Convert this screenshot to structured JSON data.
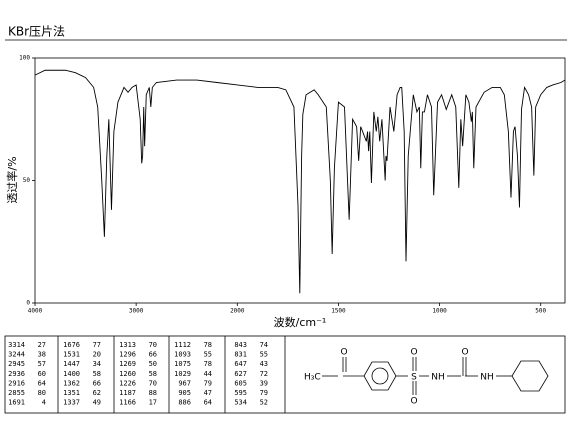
{
  "chart_data": {
    "type": "line",
    "title": "KBr压片法",
    "xlabel": "波数/cm⁻¹",
    "ylabel": "透过率/%",
    "xlim": [
      4000,
      380
    ],
    "ylim": [
      0,
      100
    ],
    "xticks": [
      4000,
      3000,
      2000,
      1500,
      1000,
      500
    ],
    "yticks": [
      0,
      50,
      100
    ],
    "color": "#000000",
    "x": [
      4000,
      3900,
      3800,
      3700,
      3600,
      3500,
      3420,
      3380,
      3340,
      3314,
      3290,
      3270,
      3244,
      3220,
      3180,
      3120,
      3080,
      3040,
      3000,
      2960,
      2945,
      2936,
      2925,
      2916,
      2900,
      2870,
      2855,
      2840,
      2800,
      2600,
      2400,
      2200,
      2000,
      1900,
      1800,
      1760,
      1720,
      1700,
      1691,
      1682,
      1676,
      1660,
      1620,
      1600,
      1560,
      1540,
      1531,
      1520,
      1500,
      1470,
      1447,
      1430,
      1410,
      1400,
      1390,
      1362,
      1356,
      1351,
      1345,
      1337,
      1325,
      1313,
      1305,
      1296,
      1285,
      1269,
      1265,
      1260,
      1245,
      1226,
      1210,
      1195,
      1187,
      1175,
      1166,
      1155,
      1130,
      1112,
      1100,
      1093,
      1085,
      1075,
      1060,
      1040,
      1029,
      1010,
      990,
      967,
      940,
      920,
      905,
      895,
      886,
      870,
      855,
      843,
      838,
      831,
      820,
      780,
      740,
      700,
      680,
      660,
      647,
      635,
      627,
      615,
      605,
      600,
      595,
      580,
      560,
      545,
      534,
      525,
      500,
      470,
      440,
      400,
      380
    ],
    "values": [
      93,
      95,
      95,
      95,
      94,
      92,
      88,
      80,
      50,
      27,
      60,
      75,
      38,
      70,
      82,
      88,
      86,
      88,
      89,
      75,
      57,
      60,
      80,
      64,
      85,
      88,
      80,
      88,
      90,
      91,
      91,
      90,
      89,
      88,
      88,
      87,
      80,
      40,
      4,
      60,
      77,
      85,
      87,
      85,
      80,
      50,
      20,
      55,
      82,
      80,
      34,
      75,
      72,
      58,
      72,
      66,
      70,
      62,
      70,
      49,
      78,
      70,
      76,
      66,
      75,
      50,
      60,
      58,
      80,
      70,
      85,
      88,
      88,
      70,
      17,
      60,
      85,
      78,
      80,
      55,
      78,
      78,
      85,
      80,
      44,
      82,
      85,
      79,
      85,
      80,
      47,
      75,
      64,
      85,
      82,
      74,
      78,
      55,
      80,
      86,
      88,
      88,
      85,
      70,
      43,
      70,
      72,
      60,
      39,
      60,
      79,
      88,
      85,
      80,
      52,
      80,
      85,
      88,
      89,
      90,
      91
    ]
  },
  "peak_table": [
    [
      [
        3314,
        27
      ],
      [
        3244,
        38
      ],
      [
        2945,
        57
      ],
      [
        2936,
        60
      ],
      [
        2916,
        64
      ],
      [
        2855,
        80
      ],
      [
        1691,
        4
      ]
    ],
    [
      [
        1676,
        77
      ],
      [
        1531,
        20
      ],
      [
        1447,
        34
      ],
      [
        1400,
        58
      ],
      [
        1362,
        66
      ],
      [
        1351,
        62
      ],
      [
        1337,
        49
      ]
    ],
    [
      [
        1313,
        70
      ],
      [
        1296,
        66
      ],
      [
        1269,
        50
      ],
      [
        1260,
        58
      ],
      [
        1226,
        70
      ],
      [
        1187,
        88
      ],
      [
        1166,
        17
      ]
    ],
    [
      [
        1112,
        78
      ],
      [
        1093,
        55
      ],
      [
        1075,
        78
      ],
      [
        1029,
        44
      ],
      [
        967,
        79
      ],
      [
        905,
        47
      ],
      [
        886,
        64
      ]
    ],
    [
      [
        843,
        74
      ],
      [
        831,
        55
      ],
      [
        647,
        43
      ],
      [
        627,
        72
      ],
      [
        605,
        39
      ],
      [
        595,
        79
      ],
      [
        534,
        52
      ]
    ]
  ],
  "structure": {
    "methyl": "H₃C",
    "keto_o": "O",
    "sulfur": "S",
    "sulfonyl_o1": "O",
    "sulfonyl_o2": "O",
    "nh1": "NH",
    "urea_o": "O",
    "nh2": "NH"
  }
}
